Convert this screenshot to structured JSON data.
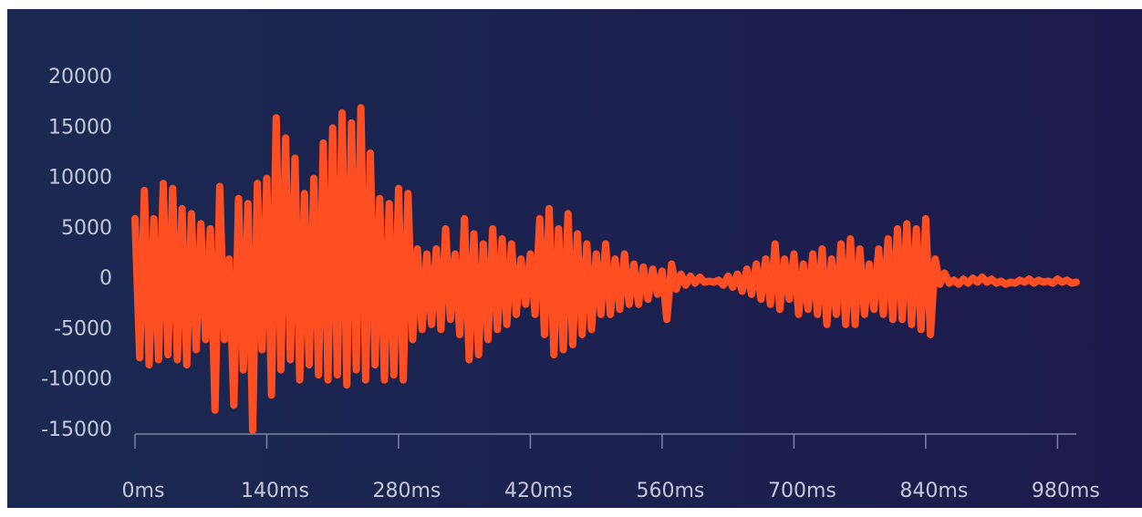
{
  "chart_data": {
    "type": "line",
    "x": [
      0,
      5,
      10,
      15,
      20,
      25,
      30,
      35,
      40,
      45,
      50,
      55,
      60,
      65,
      70,
      75,
      80,
      85,
      90,
      95,
      100,
      105,
      110,
      115,
      120,
      125,
      130,
      135,
      140,
      145,
      150,
      155,
      160,
      165,
      170,
      175,
      180,
      185,
      190,
      195,
      200,
      205,
      210,
      215,
      220,
      225,
      230,
      235,
      240,
      245,
      250,
      255,
      260,
      265,
      270,
      275,
      280,
      285,
      290,
      295,
      300,
      305,
      310,
      315,
      320,
      325,
      330,
      335,
      340,
      345,
      350,
      355,
      360,
      365,
      370,
      375,
      380,
      385,
      390,
      395,
      400,
      405,
      410,
      415,
      420,
      425,
      430,
      435,
      440,
      445,
      450,
      455,
      460,
      465,
      470,
      475,
      480,
      485,
      490,
      495,
      500,
      505,
      510,
      515,
      520,
      525,
      530,
      535,
      540,
      545,
      550,
      555,
      560,
      565,
      570,
      575,
      580,
      585,
      590,
      595,
      600,
      605,
      610,
      615,
      620,
      625,
      630,
      635,
      640,
      645,
      650,
      655,
      660,
      665,
      670,
      675,
      680,
      685,
      690,
      695,
      700,
      705,
      710,
      715,
      720,
      725,
      730,
      735,
      740,
      745,
      750,
      755,
      760,
      765,
      770,
      775,
      780,
      785,
      790,
      795,
      800,
      805,
      810,
      815,
      820,
      825,
      830,
      835,
      840,
      845,
      850,
      855,
      860,
      865,
      870,
      875,
      880,
      885,
      890,
      895,
      900,
      905,
      910,
      915,
      920,
      925,
      930,
      935,
      940,
      945,
      950,
      955,
      960,
      965,
      970,
      975,
      980,
      985,
      990,
      995,
      1000
    ],
    "series": [
      {
        "color": "#ff4f22",
        "values": [
          6000,
          -7800,
          8800,
          -8500,
          6000,
          -8000,
          9500,
          -7500,
          9000,
          -8000,
          7000,
          -8500,
          6500,
          -7000,
          5500,
          -6000,
          5000,
          -13000,
          9200,
          -6000,
          2000,
          -12500,
          8000,
          -9000,
          7500,
          -15000,
          9500,
          -7000,
          10000,
          -11500,
          16000,
          -9000,
          14000,
          -8000,
          12000,
          -10000,
          8500,
          -8500,
          10000,
          -9500,
          13500,
          -10000,
          15000,
          -9500,
          16500,
          -10500,
          15500,
          -9000,
          17000,
          -10000,
          12500,
          -8500,
          8000,
          -10000,
          7500,
          -9500,
          9000,
          -10000,
          8500,
          -6000,
          3000,
          -5000,
          2500,
          -4500,
          3000,
          -5000,
          5000,
          -4000,
          2500,
          -5500,
          6000,
          -8000,
          4500,
          -7500,
          3500,
          -6000,
          5000,
          -5000,
          4000,
          -4500,
          3500,
          -3500,
          2000,
          -2500,
          2500,
          -3500,
          6000,
          -5500,
          7000,
          -7500,
          5000,
          -7000,
          6500,
          -6500,
          4500,
          -5500,
          3500,
          -5000,
          2500,
          -3500,
          3500,
          -3500,
          2000,
          -3000,
          2500,
          -2500,
          1500,
          -2500,
          1200,
          -2000,
          1000,
          -1500,
          800,
          -4000,
          1500,
          -1000,
          500,
          -600,
          300,
          -400,
          200,
          -300,
          -200,
          -300,
          -100,
          -600,
          300,
          -800,
          500,
          -1200,
          1000,
          -1500,
          1500,
          -2000,
          2000,
          -2500,
          3500,
          -3000,
          2000,
          -2000,
          2500,
          -3500,
          1500,
          -3000,
          2500,
          -3500,
          3000,
          -4500,
          2000,
          -3500,
          3500,
          -4500,
          4000,
          -4500,
          3000,
          -3500,
          1500,
          -3000,
          3000,
          -3500,
          4000,
          -4000,
          5000,
          -4000,
          5500,
          -4500,
          5000,
          -5000,
          6000,
          -5500,
          2000,
          -500,
          600,
          -400,
          -100,
          -500,
          0,
          -400,
          100,
          -300,
          200,
          -300,
          0,
          -400,
          -200,
          -500,
          -300,
          -400,
          -100,
          -300,
          0,
          -400,
          -100,
          -300,
          -200,
          -400,
          0,
          -300,
          -100,
          -400,
          -300
        ]
      }
    ],
    "xlim": [
      0,
      1000
    ],
    "xticks": [
      {
        "value": 0,
        "label": "0ms"
      },
      {
        "value": 140,
        "label": "140ms"
      },
      {
        "value": 280,
        "label": "280ms"
      },
      {
        "value": 420,
        "label": "420ms"
      },
      {
        "value": 560,
        "label": "560ms"
      },
      {
        "value": 700,
        "label": "700ms"
      },
      {
        "value": 840,
        "label": "840ms"
      },
      {
        "value": 980,
        "label": "980ms"
      }
    ],
    "ylim": [
      -15000,
      20000
    ],
    "yticks": [
      20000,
      15000,
      10000,
      5000,
      0,
      -5000,
      -10000,
      -15000
    ]
  }
}
